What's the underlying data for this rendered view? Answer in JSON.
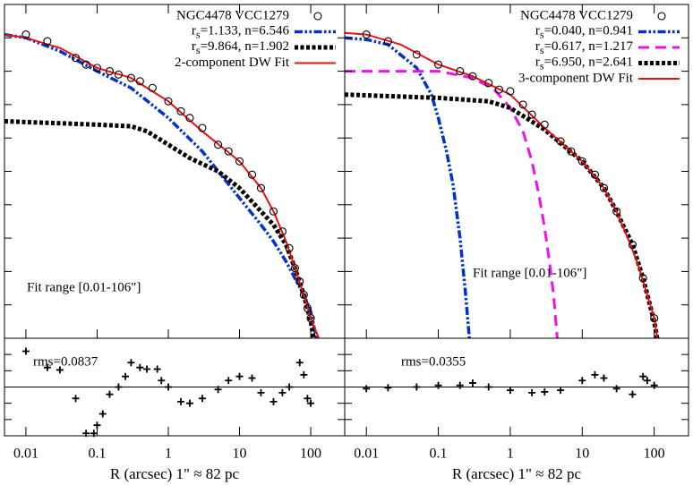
{
  "chart_data": [
    {
      "type": "line",
      "xlog": true,
      "xlim": [
        0.005,
        300
      ],
      "xticks": [
        0.01,
        0.1,
        1,
        10,
        100
      ],
      "ylim": [
        0,
        10
      ],
      "yticks": [
        1,
        2,
        3,
        4,
        5,
        6,
        7,
        8,
        9
      ],
      "annotation": "Fit range [0.01-106\"]",
      "series": [
        {
          "name": "NGC4478 VCC1279",
          "marker": "circle",
          "color": "#000000",
          "x": [
            0.01,
            0.02,
            0.05,
            0.07,
            0.1,
            0.15,
            0.2,
            0.3,
            0.4,
            0.6,
            1,
            1.5,
            2,
            3,
            5,
            7,
            10,
            15,
            20,
            30,
            40,
            50,
            60,
            70,
            80,
            90,
            100
          ],
          "values": [
            9.1,
            8.9,
            8.4,
            8.2,
            8.1,
            8.0,
            7.9,
            7.8,
            7.7,
            7.5,
            7.1,
            6.8,
            6.6,
            6.3,
            5.8,
            5.6,
            5.3,
            4.9,
            4.5,
            3.8,
            3.2,
            2.7,
            2.1,
            1.7,
            1.3,
            0.9,
            0.6
          ]
        },
        {
          "name": "rs=1.133, n=6.546",
          "color": "#0033cc",
          "dash": "dash-dot-dot",
          "x": [
            0.005,
            0.01,
            0.03,
            0.1,
            0.3,
            1,
            3,
            10,
            20,
            30,
            45,
            60,
            80,
            100,
            120
          ],
          "values": [
            9.1,
            9.0,
            8.6,
            8.0,
            7.5,
            6.6,
            5.6,
            4.2,
            3.4,
            2.9,
            2.3,
            1.8,
            1.3,
            0.8,
            0
          ]
        },
        {
          "name": "rs=9.864, n=1.902",
          "color": "#000000",
          "dash": "dotted",
          "x": [
            0.005,
            0.1,
            0.3,
            0.5,
            1,
            2,
            5,
            10,
            20,
            30,
            45,
            60,
            80,
            100,
            110
          ],
          "values": [
            6.5,
            6.4,
            6.35,
            6.2,
            5.8,
            5.4,
            5.0,
            4.5,
            3.8,
            3.4,
            2.8,
            2.1,
            1.3,
            0.5,
            0
          ]
        },
        {
          "name": "2-component DW Fit",
          "color": "#ee1111",
          "dash": "solid",
          "x": [
            0.005,
            0.01,
            0.03,
            0.1,
            0.3,
            1,
            3,
            10,
            20,
            30,
            45,
            60,
            80,
            100,
            130
          ],
          "values": [
            9.1,
            9.0,
            8.7,
            8.1,
            7.8,
            7.1,
            6.2,
            5.3,
            4.5,
            3.8,
            2.9,
            2.1,
            1.3,
            0.6,
            0
          ]
        }
      ]
    },
    {
      "type": "scatter",
      "xlog": true,
      "xlim": [
        0.005,
        300
      ],
      "xticks": [
        0.01,
        0.1,
        1,
        10,
        100
      ],
      "ylim": [
        -0.6,
        0.6
      ],
      "yticks": [
        -0.4,
        -0.2,
        0,
        0.2,
        0.4
      ],
      "annotation": "rms=0.0837",
      "xlabel": "R (arcsec)  1\" ≈ 82 pc",
      "x": [
        0.01,
        0.02,
        0.03,
        0.05,
        0.07,
        0.09,
        0.1,
        0.12,
        0.15,
        0.2,
        0.25,
        0.3,
        0.4,
        0.5,
        0.7,
        0.8,
        1,
        1.5,
        2,
        3,
        5,
        7,
        10,
        15,
        20,
        30,
        40,
        50,
        70,
        80,
        90,
        100
      ],
      "values": [
        0.44,
        0.24,
        0.21,
        -0.14,
        -0.57,
        -0.57,
        -0.47,
        -0.33,
        -0.09,
        0,
        0.13,
        0.3,
        0.24,
        0.22,
        0.22,
        0.08,
        0,
        -0.18,
        -0.2,
        -0.14,
        -0.03,
        0.08,
        0.13,
        0.11,
        -0.07,
        -0.18,
        -0.07,
        0,
        0.3,
        0.15,
        -0.14,
        -0.2
      ]
    },
    {
      "type": "line",
      "xlog": true,
      "xlim": [
        0.005,
        300
      ],
      "xticks": [
        0.01,
        0.1,
        1,
        10,
        100
      ],
      "ylim": [
        0,
        10
      ],
      "yticks": [
        1,
        2,
        3,
        4,
        5,
        6,
        7,
        8,
        9
      ],
      "annotation": "Fit range [0.01-106\"]",
      "series": [
        {
          "name": "NGC4478 VCC1279",
          "marker": "circle",
          "color": "#000000",
          "x": [
            0.01,
            0.02,
            0.05,
            0.1,
            0.2,
            0.3,
            0.5,
            0.7,
            1,
            1.5,
            2,
            3,
            5,
            7,
            10,
            15,
            20,
            30,
            50,
            70,
            100
          ],
          "values": [
            9.1,
            8.9,
            8.5,
            8.2,
            8.0,
            7.85,
            7.65,
            7.45,
            7.4,
            7.0,
            6.7,
            6.4,
            5.9,
            5.6,
            5.3,
            4.9,
            4.5,
            3.8,
            2.8,
            1.8,
            0.6
          ]
        },
        {
          "name": "rs=0.040, n=0.941",
          "color": "#0033cc",
          "dash": "dash-dot-dot",
          "x": [
            0.005,
            0.01,
            0.02,
            0.05,
            0.08,
            0.1,
            0.13,
            0.16,
            0.2,
            0.24,
            0.27
          ],
          "values": [
            9.0,
            8.95,
            8.8,
            8.1,
            7.3,
            6.6,
            5.6,
            4.6,
            3.0,
            1.3,
            0
          ]
        },
        {
          "name": "rs=0.617, n=1.217",
          "color": "#ee11ee",
          "dash": "dashed",
          "x": [
            0.005,
            0.1,
            0.3,
            0.6,
            1,
            1.5,
            2,
            2.5,
            3,
            3.5,
            4,
            4.5
          ],
          "values": [
            8.0,
            8.0,
            7.8,
            7.45,
            6.9,
            6.2,
            5.3,
            4.3,
            3.3,
            2.3,
            1.3,
            0
          ]
        },
        {
          "name": "rs=6.950, n=2.641",
          "color": "#000000",
          "dash": "dotted",
          "x": [
            0.005,
            0.1,
            0.5,
            1,
            3,
            10,
            20,
            30,
            50,
            70,
            100,
            110
          ],
          "values": [
            7.3,
            7.2,
            7.1,
            6.9,
            6.25,
            5.3,
            4.5,
            3.8,
            2.8,
            1.8,
            0.5,
            0
          ]
        },
        {
          "name": "3-component DW Fit",
          "color": "#ee1111",
          "dash": "solid",
          "x": [
            0.005,
            0.01,
            0.03,
            0.1,
            0.3,
            1,
            3,
            10,
            20,
            30,
            45,
            60,
            80,
            100,
            110
          ],
          "values": [
            9.15,
            9.1,
            8.8,
            8.2,
            7.85,
            7.3,
            6.3,
            5.3,
            4.5,
            3.8,
            2.9,
            2.2,
            1.3,
            0.6,
            0
          ]
        }
      ]
    },
    {
      "type": "scatter",
      "xlog": true,
      "xlim": [
        0.005,
        300
      ],
      "xticks": [
        0.01,
        0.1,
        1,
        10,
        100
      ],
      "ylim": [
        -0.6,
        0.6
      ],
      "yticks": [
        -0.4,
        -0.2,
        0,
        0.2,
        0.4
      ],
      "annotation": "rms=0.0355",
      "xlabel": "R (arcsec)  1\" ≈ 82 pc",
      "x": [
        0.01,
        0.02,
        0.05,
        0.1,
        0.2,
        0.3,
        0.5,
        1,
        2,
        3,
        5,
        10,
        15,
        20,
        30,
        50,
        70,
        80,
        100
      ],
      "values": [
        -0.02,
        -0.01,
        0,
        0.02,
        0.02,
        0.05,
        0,
        -0.04,
        -0.07,
        -0.06,
        -0.04,
        0.08,
        0.15,
        0.11,
        -0.02,
        -0.09,
        0.13,
        0.08,
        0.02
      ]
    }
  ]
}
